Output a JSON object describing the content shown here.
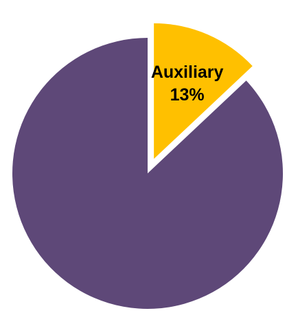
{
  "chart_data": {
    "type": "pie",
    "slices": [
      {
        "value": 13,
        "color": "#FFC000",
        "exploded": true,
        "label": "Auxiliary",
        "value_label": "13%"
      },
      {
        "value": 87,
        "color": "#5E4878",
        "exploded": false,
        "label": "",
        "value_label": ""
      }
    ],
    "start_angle": 0,
    "direction": "clockwise",
    "legend": "none"
  }
}
